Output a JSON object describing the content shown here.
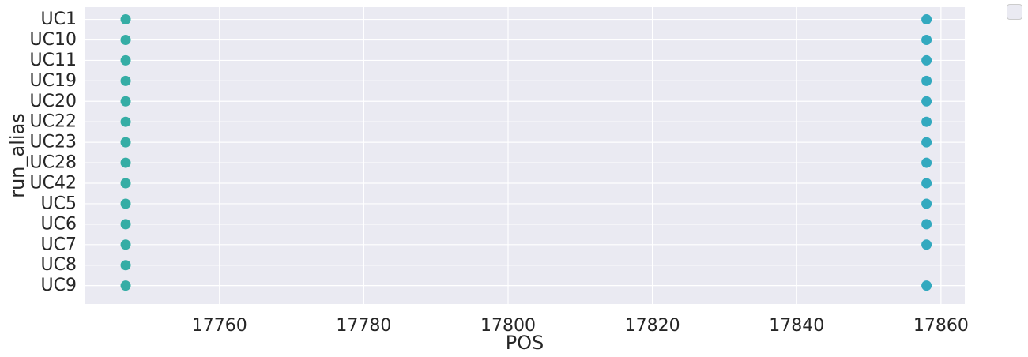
{
  "chart_data": {
    "type": "scatter",
    "title": "",
    "xlabel": "POS",
    "ylabel": "run_alias",
    "xlim": [
      17741.3,
      17863.3
    ],
    "xticks": [
      17760,
      17780,
      17800,
      17820,
      17840,
      17860
    ],
    "categories": [
      "UC1",
      "UC10",
      "UC11",
      "UC19",
      "UC20",
      "UC22",
      "UC23",
      "UC28",
      "UC42",
      "UC5",
      "UC6",
      "UC7",
      "UC8",
      "UC9"
    ],
    "grid": true,
    "legend": "top-right outside, empty",
    "series": [
      {
        "x_value": 17747,
        "color": "#35ada5",
        "categories": [
          "UC1",
          "UC10",
          "UC11",
          "UC19",
          "UC20",
          "UC22",
          "UC23",
          "UC28",
          "UC42",
          "UC5",
          "UC6",
          "UC7",
          "UC8",
          "UC9"
        ]
      },
      {
        "x_value": 17858,
        "color": "#33a9bf",
        "categories": [
          "UC1",
          "UC10",
          "UC11",
          "UC19",
          "UC20",
          "UC22",
          "UC23",
          "UC28",
          "UC42",
          "UC5",
          "UC6",
          "UC7",
          "UC9"
        ]
      }
    ]
  }
}
